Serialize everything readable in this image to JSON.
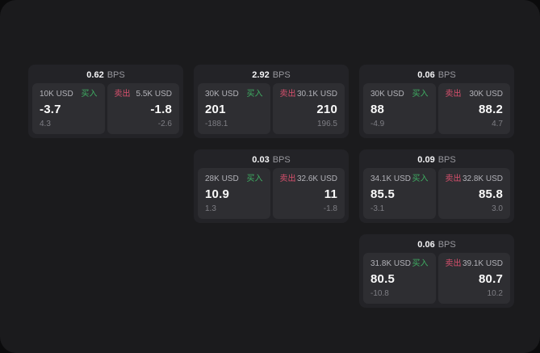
{
  "theme": {
    "outer_bg": "#0b0b0c",
    "panel_bg": "#1b1b1d",
    "card_bg": "#232327",
    "tile_bg": "#2e2e32",
    "text_primary": "#fafafa",
    "text_secondary": "#b2b2b8",
    "text_muted": "#7e7e84",
    "buy_color": "#3fae63",
    "sell_color": "#d8506d"
  },
  "labels": {
    "bps_suffix": "BPS",
    "buy": "买入",
    "sell": "卖出"
  },
  "cards": [
    {
      "bps": "0.62",
      "buy": {
        "size": "10K USD",
        "price": "-3.7",
        "delta": "4.3"
      },
      "sell": {
        "size": "5.5K USD",
        "price": "-1.8",
        "delta": "-2.6"
      }
    },
    {
      "bps": "2.92",
      "buy": {
        "size": "30K USD",
        "price": "201",
        "delta": "-188.1"
      },
      "sell": {
        "size": "30.1K USD",
        "price": "210",
        "delta": "196.5"
      }
    },
    {
      "bps": "0.06",
      "buy": {
        "size": "30K USD",
        "price": "88",
        "delta": "-4.9"
      },
      "sell": {
        "size": "30K USD",
        "price": "88.2",
        "delta": "4.7"
      }
    },
    {
      "bps": "0.03",
      "buy": {
        "size": "28K USD",
        "price": "10.9",
        "delta": "1.3"
      },
      "sell": {
        "size": "32.6K USD",
        "price": "11",
        "delta": "-1.8"
      }
    },
    {
      "bps": "0.09",
      "buy": {
        "size": "34.1K USD",
        "price": "85.5",
        "delta": "-3.1"
      },
      "sell": {
        "size": "32.8K USD",
        "price": "85.8",
        "delta": "3.0"
      }
    },
    {
      "bps": "0.06",
      "buy": {
        "size": "31.8K USD",
        "price": "80.5",
        "delta": "-10.8"
      },
      "sell": {
        "size": "39.1K USD",
        "price": "80.7",
        "delta": "10.2"
      }
    }
  ]
}
